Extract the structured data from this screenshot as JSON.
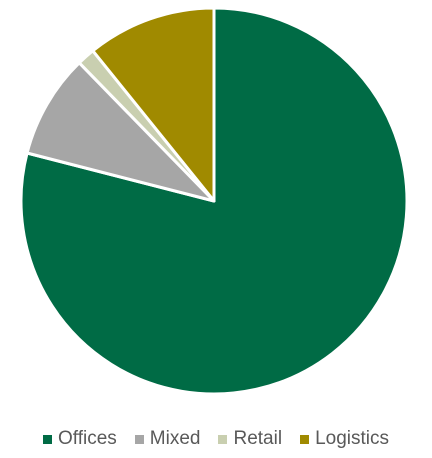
{
  "chart_data": {
    "type": "pie",
    "categories": [
      "Offices",
      "Mixed",
      "Retail",
      "Logistics"
    ],
    "values": [
      79.0,
      8.7,
      1.5,
      10.8
    ],
    "colors": [
      "#006b45",
      "#a6a6a6",
      "#c9cfb0",
      "#a08a00"
    ],
    "title": "",
    "start_angle_deg": 0,
    "direction": "clockwise",
    "legend_position": "bottom"
  }
}
